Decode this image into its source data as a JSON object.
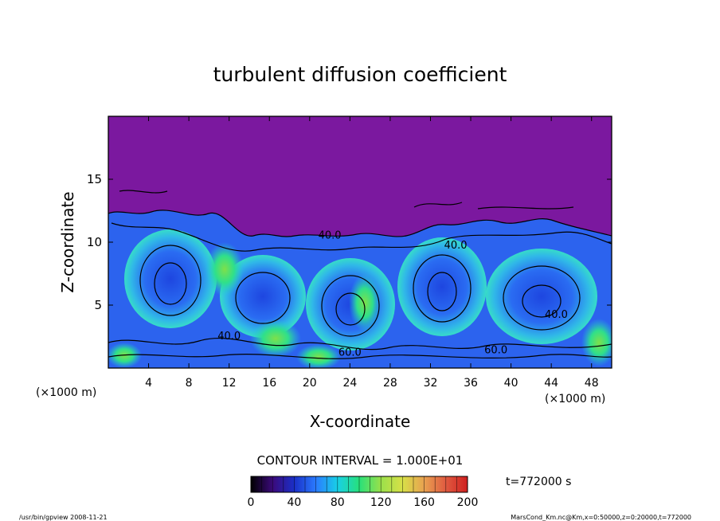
{
  "chart_data": {
    "type": "heatmap",
    "title": "turbulent diffusion coefficient",
    "xlabel": "X-coordinate",
    "ylabel": "Z-coordinate",
    "x_unit": "(×1000 m)",
    "y_unit": "(×1000 m)",
    "xlim": [
      0,
      50
    ],
    "ylim": [
      0,
      20
    ],
    "x_ticks": [
      4,
      8,
      12,
      16,
      20,
      24,
      28,
      32,
      36,
      40,
      44,
      48
    ],
    "y_ticks": [
      5,
      10,
      15
    ],
    "contour_interval_text": "CONTOUR INTERVAL = 1.000E+01",
    "contour_labels": [
      {
        "text": "40.0",
        "x": 22.0,
        "z": 10.6
      },
      {
        "text": "40.0",
        "x": 34.5,
        "z": 9.8
      },
      {
        "text": "40.0",
        "x": 44.5,
        "z": 4.3
      },
      {
        "text": "40.0",
        "x": 12.0,
        "z": 2.6
      },
      {
        "text": "60.0",
        "x": 24.0,
        "z": 1.3
      },
      {
        "text": "60.0",
        "x": 38.5,
        "z": 1.5
      }
    ],
    "colorbar": {
      "min": 0,
      "max": 200,
      "ticks": [
        "0",
        "40",
        "80",
        "120",
        "160",
        "200"
      ],
      "colors": [
        "#000000",
        "#3b0a7a",
        "#1a2fc8",
        "#2a7bff",
        "#18d0e6",
        "#27e07a",
        "#9ae04a",
        "#d8e048",
        "#e8a050",
        "#e05a40",
        "#cf1f1f"
      ]
    },
    "background_color": "#7b189f",
    "time_label": "t=772000 s"
  },
  "footer": {
    "left": "/usr/bin/gpview   2008-11-21",
    "right": "MarsCond_Km.nc@Km,x=0:50000,z=0:20000,t=772000"
  }
}
